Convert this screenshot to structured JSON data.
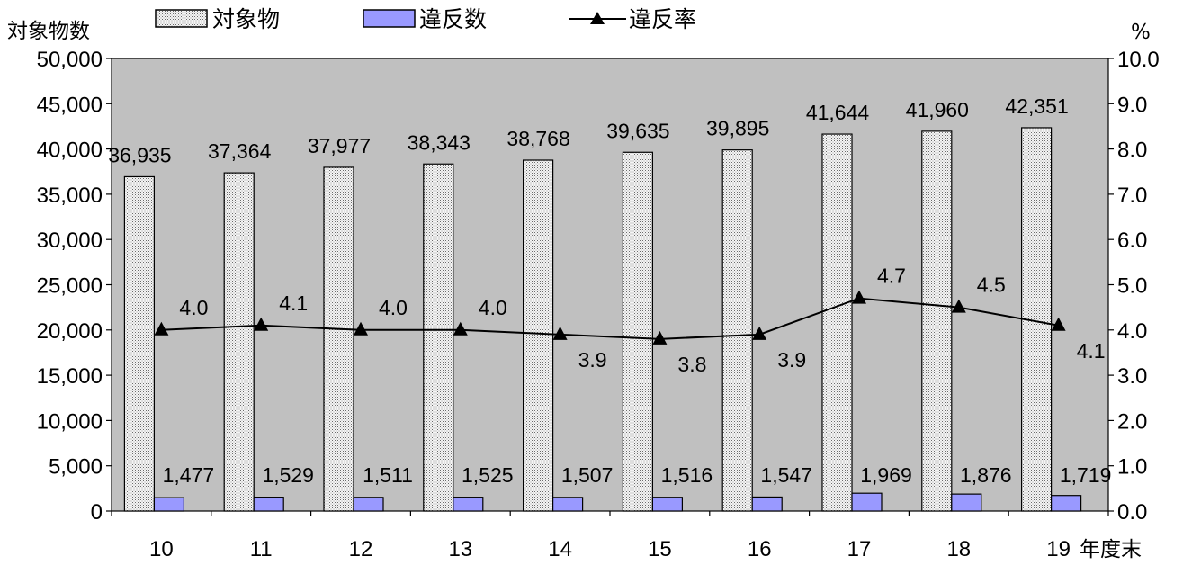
{
  "chart_data": {
    "type": "bar",
    "categories": [
      "10",
      "11",
      "12",
      "13",
      "14",
      "15",
      "16",
      "17",
      "18",
      "19"
    ],
    "x_unit_label": "年度末",
    "left_axis": {
      "label": "対象物数",
      "min": 0,
      "max": 50000,
      "step": 5000,
      "tick_labels": [
        "0",
        "5,000",
        "10,000",
        "15,000",
        "20,000",
        "25,000",
        "30,000",
        "35,000",
        "40,000",
        "45,000",
        "50,000"
      ]
    },
    "right_axis": {
      "label": "%",
      "min": 0,
      "max": 10,
      "step": 1,
      "tick_labels": [
        "0.0",
        "1.0",
        "2.0",
        "3.0",
        "4.0",
        "5.0",
        "6.0",
        "7.0",
        "8.0",
        "9.0",
        "10.0"
      ]
    },
    "series": [
      {
        "name": "対象物",
        "kind": "bar",
        "axis": "left",
        "pattern": "dotted",
        "values": [
          36935,
          37364,
          37977,
          38343,
          38768,
          39635,
          39895,
          41644,
          41960,
          42351
        ],
        "labels": [
          "36,935",
          "37,364",
          "37,977",
          "38,343",
          "38,768",
          "39,635",
          "39,895",
          "41,644",
          "41,960",
          "42,351"
        ]
      },
      {
        "name": "違反数",
        "kind": "bar",
        "axis": "left",
        "color": "#9999ff",
        "values": [
          1477,
          1529,
          1511,
          1525,
          1507,
          1516,
          1547,
          1969,
          1876,
          1719
        ],
        "labels": [
          "1,477",
          "1,529",
          "1,511",
          "1,525",
          "1,507",
          "1,516",
          "1,547",
          "1,969",
          "1,876",
          "1,719"
        ]
      },
      {
        "name": "違反率",
        "kind": "line",
        "axis": "right",
        "marker": "triangle",
        "color": "#000000",
        "values": [
          4.0,
          4.1,
          4.0,
          4.0,
          3.9,
          3.8,
          3.9,
          4.7,
          4.5,
          4.1
        ],
        "labels": [
          "4.0",
          "4.1",
          "4.0",
          "4.0",
          "3.9",
          "3.8",
          "3.9",
          "4.7",
          "4.5",
          "4.1"
        ]
      }
    ],
    "plot_background": "#c0c0c0",
    "grid": false,
    "legend_position": "top"
  }
}
